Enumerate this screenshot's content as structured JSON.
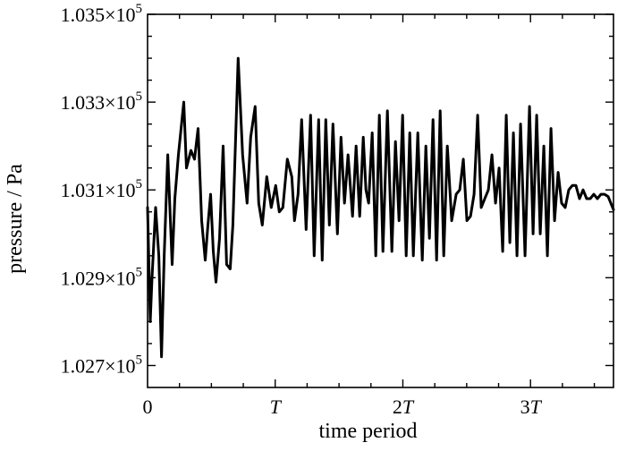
{
  "chart_data": {
    "type": "line",
    "xlabel": "time period",
    "ylabel": "pressure / Pa",
    "xlim": [
      0,
      3.65
    ],
    "ylim": [
      102650,
      103500
    ],
    "x_ticks": [
      {
        "value": 0,
        "prefix": "0",
        "italic": ""
      },
      {
        "value": 1,
        "prefix": "",
        "italic": "T"
      },
      {
        "value": 2,
        "prefix": "2",
        "italic": "T"
      },
      {
        "value": 3,
        "prefix": "3",
        "italic": "T"
      }
    ],
    "y_ticks": [
      {
        "value": 102700,
        "mantissa": "1.027",
        "times": "×10",
        "exp": "5"
      },
      {
        "value": 102900,
        "mantissa": "1.029",
        "times": "×10",
        "exp": "5"
      },
      {
        "value": 103100,
        "mantissa": "1.031",
        "times": "×10",
        "exp": "5"
      },
      {
        "value": 103300,
        "mantissa": "1.033",
        "times": "×10",
        "exp": "5"
      },
      {
        "value": 103500,
        "mantissa": "1.035",
        "times": "×10",
        "exp": "5"
      }
    ],
    "grid": false,
    "series": [
      {
        "x": [
          0.0,
          0.021,
          0.035,
          0.063,
          0.088,
          0.109,
          0.13,
          0.158,
          0.193,
          0.214,
          0.242,
          0.284,
          0.305,
          0.34,
          0.368,
          0.396,
          0.424,
          0.452,
          0.473,
          0.494,
          0.515,
          0.536,
          0.564,
          0.592,
          0.619,
          0.647,
          0.668,
          0.71,
          0.745,
          0.78,
          0.808,
          0.843,
          0.871,
          0.899,
          0.934,
          0.969,
          1.004,
          1.032,
          1.06,
          1.095,
          1.13,
          1.151,
          1.179,
          1.207,
          1.242,
          1.277,
          1.305,
          1.34,
          1.368,
          1.396,
          1.424,
          1.452,
          1.487,
          1.515,
          1.543,
          1.571,
          1.606,
          1.634,
          1.662,
          1.69,
          1.711,
          1.732,
          1.76,
          1.788,
          1.816,
          1.844,
          1.879,
          1.914,
          1.942,
          1.97,
          1.998,
          2.026,
          2.054,
          2.082,
          2.117,
          2.152,
          2.18,
          2.208,
          2.236,
          2.264,
          2.292,
          2.32,
          2.348,
          2.383,
          2.418,
          2.446,
          2.474,
          2.502,
          2.53,
          2.558,
          2.586,
          2.614,
          2.642,
          2.67,
          2.698,
          2.726,
          2.754,
          2.782,
          2.81,
          2.838,
          2.866,
          2.894,
          2.922,
          2.957,
          2.992,
          3.02,
          3.048,
          3.076,
          3.104,
          3.132,
          3.16,
          3.188,
          3.216,
          3.244,
          3.272,
          3.3,
          3.328,
          3.356,
          3.384,
          3.412,
          3.44,
          3.468,
          3.496,
          3.524,
          3.552,
          3.58,
          3.608,
          3.65
        ],
        "y": [
          103060,
          102800,
          102900,
          103060,
          102950,
          102720,
          102950,
          103180,
          102930,
          103080,
          103180,
          103300,
          103150,
          103190,
          103170,
          103240,
          103030,
          102940,
          103020,
          103090,
          102960,
          102890,
          102990,
          103200,
          102930,
          102920,
          103020,
          103400,
          103180,
          103070,
          103220,
          103290,
          103070,
          103020,
          103130,
          103060,
          103110,
          103050,
          103060,
          103170,
          103130,
          103030,
          103090,
          103260,
          103010,
          103270,
          102950,
          103260,
          102940,
          103260,
          103020,
          103250,
          103000,
          103220,
          103070,
          103180,
          103040,
          103200,
          103040,
          103220,
          103100,
          103070,
          103230,
          102950,
          103270,
          102960,
          103280,
          102960,
          103210,
          103030,
          103270,
          102950,
          103230,
          102950,
          103230,
          102940,
          103200,
          102990,
          103260,
          102940,
          103280,
          102950,
          103200,
          103030,
          103090,
          103100,
          103170,
          103030,
          103040,
          103090,
          103270,
          103060,
          103080,
          103100,
          103180,
          103070,
          103150,
          102960,
          103270,
          102980,
          103230,
          102950,
          103250,
          102950,
          103290,
          103000,
          103270,
          103000,
          103200,
          102950,
          103240,
          103030,
          103140,
          103070,
          103060,
          103100,
          103110,
          103110,
          103080,
          103100,
          103080,
          103080,
          103090,
          103080,
          103090,
          103090,
          103085,
          103055
        ]
      }
    ]
  }
}
